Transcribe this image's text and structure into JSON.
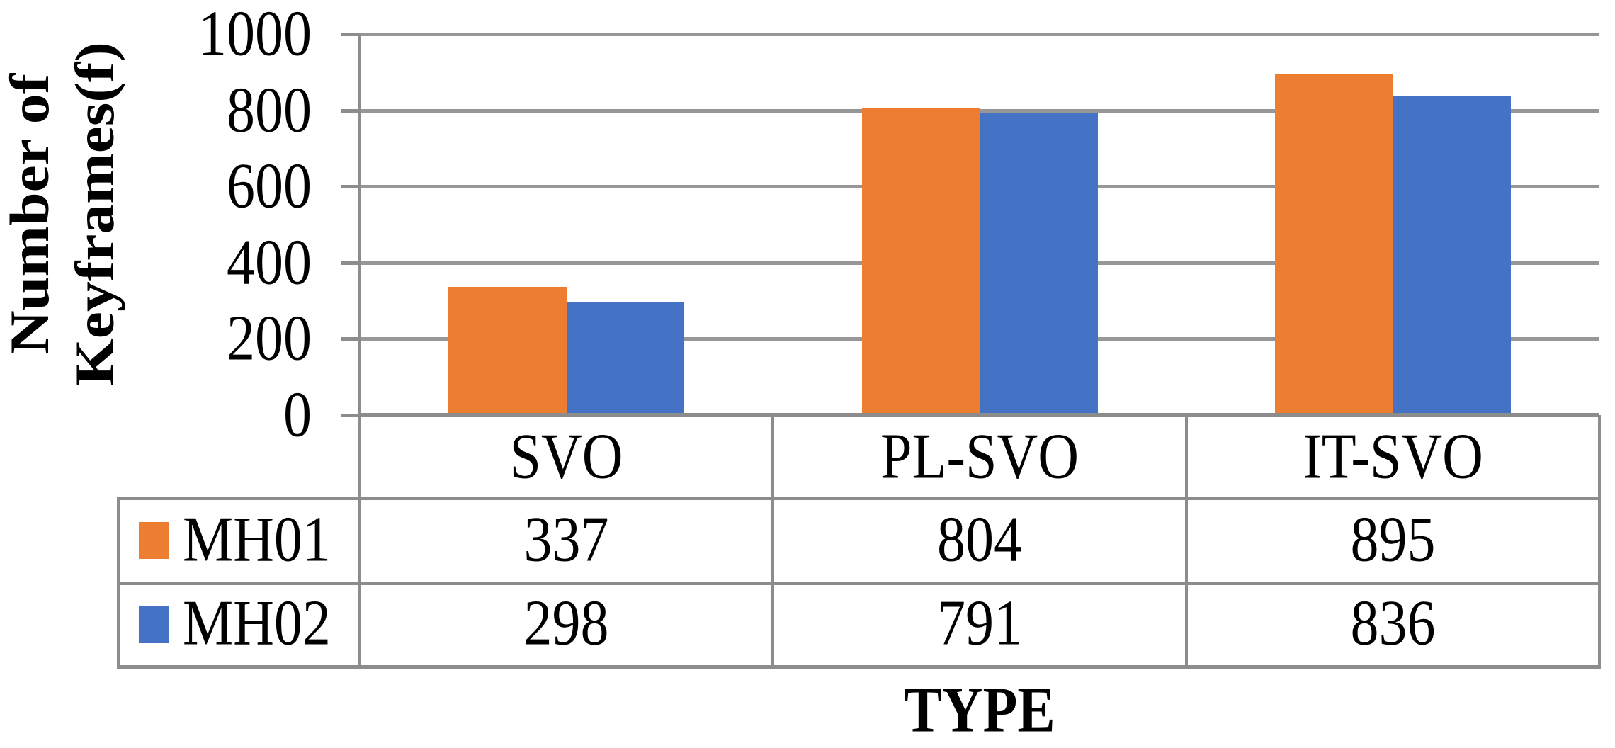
{
  "chart_data": {
    "type": "bar",
    "categories": [
      "SVO",
      "PL-SVO",
      "IT-SVO"
    ],
    "series": [
      {
        "name": "MH01",
        "color": "#ED7D31",
        "values": [
          337,
          804,
          895
        ]
      },
      {
        "name": "MH02",
        "color": "#4472C4",
        "values": [
          298,
          791,
          836
        ]
      }
    ],
    "title": "",
    "xlabel": "TYPE",
    "ylabel": "Number of Keyframes(f)",
    "ylim": [
      0,
      1000
    ],
    "ytick_interval": 200,
    "ytick_labels_top_to_bottom": [
      "1000",
      "800",
      "600",
      "400",
      "200",
      "0"
    ],
    "grid": true,
    "legend_position": "table-left-column"
  },
  "axes": {
    "y_title_line1": "Number of",
    "y_title_line2": "Keyframes(f)",
    "x_title": "TYPE",
    "yticks": {
      "0": "1000",
      "1": "800",
      "2": "600",
      "3": "400",
      "4": "200",
      "5": "0"
    }
  },
  "table": {
    "columns": [
      "SVO",
      "PL-SVO",
      "IT-SVO"
    ],
    "rows": [
      {
        "label": "MH01",
        "swatch_color": "#ED7D31",
        "values": [
          "337",
          "804",
          "895"
        ]
      },
      {
        "label": "MH02",
        "swatch_color": "#4472C4",
        "values": [
          "298",
          "791",
          "836"
        ]
      }
    ]
  },
  "colors": {
    "series_mh01": "#ED7D31",
    "series_mh02": "#4472C4",
    "gridline": "#979797",
    "border": "#8c8c8c"
  }
}
